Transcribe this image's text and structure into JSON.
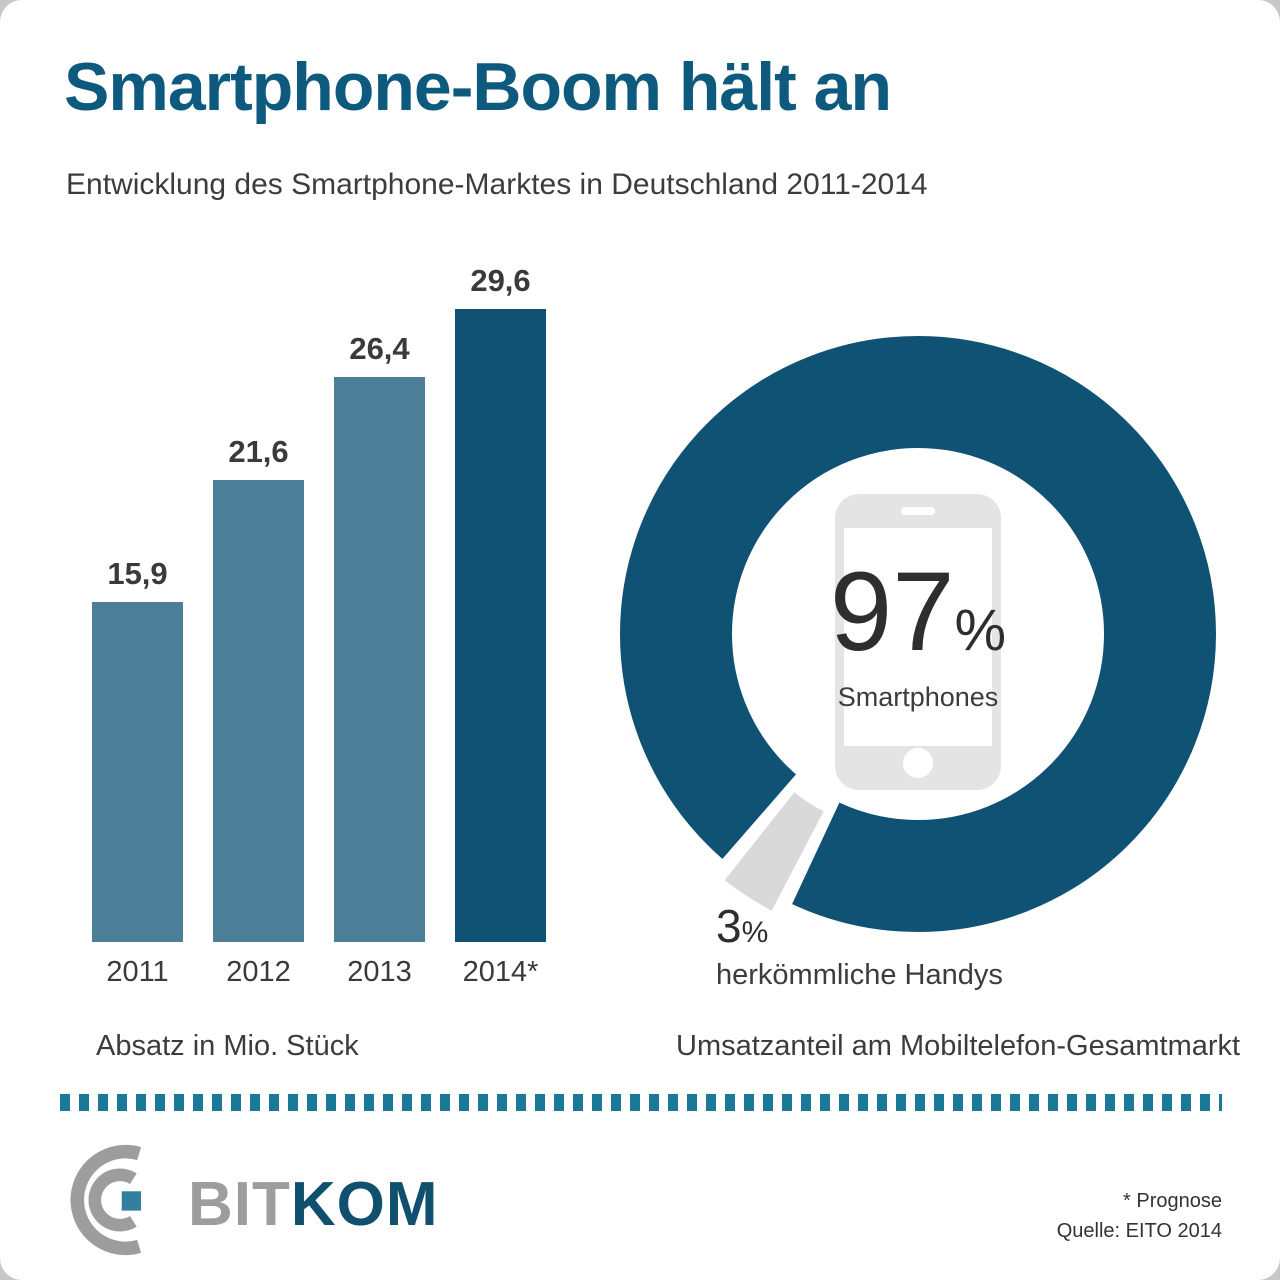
{
  "page": {
    "title": "Smartphone-Boom hält an",
    "subtitle": "Entwicklung des Smartphone-Marktes in Deutschland 2011-2014"
  },
  "chart_data": [
    {
      "type": "bar",
      "title": "Absatz in Mio. Stück",
      "categories": [
        "2011",
        "2012",
        "2013",
        "2014*"
      ],
      "values": [
        15.9,
        21.6,
        26.4,
        29.6
      ],
      "value_labels": [
        "15,9",
        "21,6",
        "26,4",
        "29,6"
      ],
      "unit": "Mio. Stück",
      "ylim": [
        0,
        32
      ],
      "bar_colors": [
        "#4d7f98",
        "#4d7f98",
        "#4d7f98",
        "#0f5273"
      ],
      "caption": "Absatz in Mio. Stück",
      "grid": "off",
      "legend": "none"
    },
    {
      "type": "pie",
      "style": "donut",
      "title": "Umsatzanteil am Mobiltelefon-Gesamtmarkt",
      "caption": "Umsatzanteil am Mobiltelefon-Gesamtmarkt",
      "slices": [
        {
          "label": "Smartphones",
          "value": 97,
          "value_display": "97",
          "percent_sign": "%",
          "color": "#0f5273"
        },
        {
          "label": "herkömmliche Handys",
          "value": 3,
          "value_display": "3",
          "percent_sign": "%",
          "color": "#d9d9d9"
        }
      ],
      "center": {
        "value": "97",
        "percent_sign": "%",
        "label": "Smartphones"
      }
    }
  ],
  "footer": {
    "logo": {
      "part1": "BIT",
      "part2": "KOM"
    },
    "footnotes": [
      "* Prognose",
      "Quelle: EITO 2014"
    ]
  },
  "colors": {
    "title_blue": "#0d5a7e",
    "bar_light": "#4d7f98",
    "bar_dark": "#0f5273",
    "donut_main": "#0f5273",
    "donut_secondary": "#d9d9d9",
    "phone_gray": "#e4e4e4",
    "divider_teal": "#1b7896",
    "logo_gray": "#9d9d9d",
    "logo_blue": "#10506e",
    "text_dark": "#3c3c3c"
  }
}
